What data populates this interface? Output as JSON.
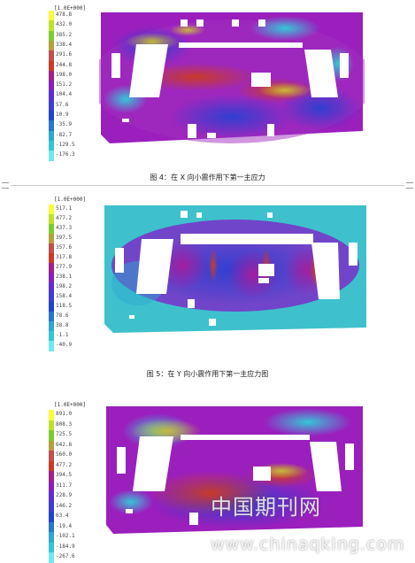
{
  "figures": [
    {
      "legend_title": "[1.0E+000]",
      "legend_values": [
        "478.8",
        "432.0",
        "385.2",
        "338.4",
        "291.6",
        "244.8",
        "198.0",
        "151.2",
        "104.4",
        "57.6",
        "10.9",
        "-35.9",
        "-82.7",
        "-129.5",
        "-176.3"
      ],
      "caption": "图 4：在 X 向小震作用下第一主应力"
    },
    {
      "legend_title": "[1.0E+000]",
      "legend_values": [
        "517.1",
        "477.2",
        "437.3",
        "397.5",
        "357.6",
        "317.8",
        "277.9",
        "238.1",
        "198.2",
        "158.4",
        "118.5",
        "78.6",
        "38.8",
        "-1.1",
        "-40.9"
      ],
      "caption": "图 5：在 Y 向小震作用下第一主应力图"
    },
    {
      "legend_title": "[1.0E+000]",
      "legend_values": [
        "891.0",
        "808.3",
        "725.5",
        "642.8",
        "560.0",
        "477.2",
        "394.5",
        "311.7",
        "228.9",
        "146.2",
        "63.4",
        "-19.4",
        "-102.1",
        "-184.9",
        "-267.6"
      ],
      "caption": ""
    }
  ],
  "legend_colors": [
    "#fbfb3a",
    "#c0e02a",
    "#7fcb2f",
    "#b5a13a",
    "#c0504d",
    "#c83a2a",
    "#a21f8f",
    "#8a1fb8",
    "#5b2fd5",
    "#3d3dd8",
    "#1f45c8",
    "#2878c8",
    "#2fa8d0",
    "#35c6d6",
    "#6fe8ee"
  ],
  "watermark": {
    "chinese": "中国期刊网",
    "url": "www.chinaqking.com"
  }
}
